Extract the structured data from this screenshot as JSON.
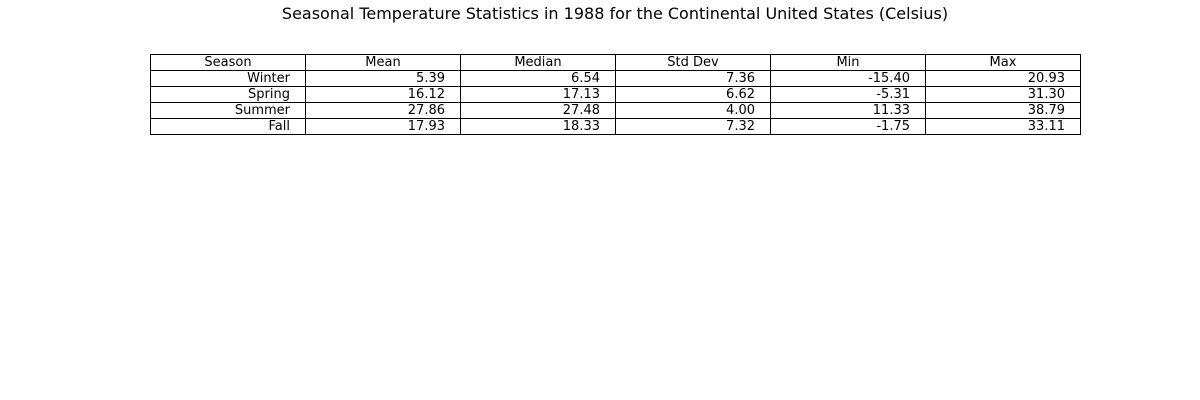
{
  "chart_data": {
    "type": "table",
    "title": "Seasonal Temperature Statistics in 1988 for the Continental United States (Celsius)",
    "columns": [
      "Season",
      "Mean",
      "Median",
      "Std Dev",
      "Min",
      "Max"
    ],
    "rows": [
      [
        "Winter",
        "5.39",
        "6.54",
        "7.36",
        "-15.40",
        "20.93"
      ],
      [
        "Spring",
        "16.12",
        "17.13",
        "6.62",
        "-5.31",
        "31.30"
      ],
      [
        "Summer",
        "27.86",
        "27.48",
        "4.00",
        "11.33",
        "38.79"
      ],
      [
        "Fall",
        "17.93",
        "18.33",
        "7.32",
        "-1.75",
        "33.11"
      ]
    ]
  }
}
